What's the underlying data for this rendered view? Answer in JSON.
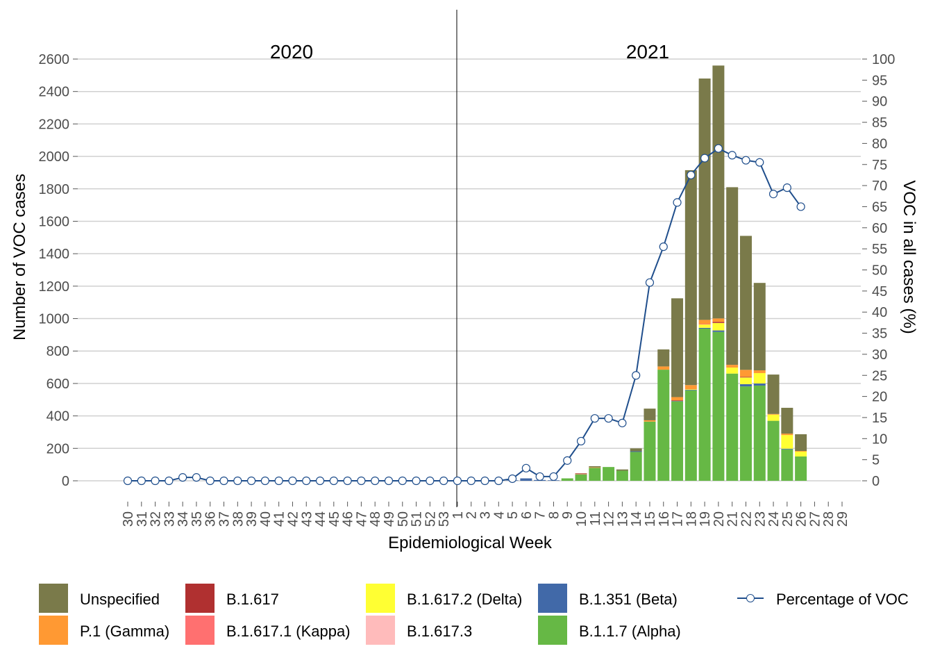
{
  "chart_data": {
    "type": "bar",
    "stacked": true,
    "title": "",
    "xlabel": "Epidemiological Week",
    "ylabel": "Number of VOC cases",
    "y2label": "VOC in all cases (%)",
    "ylim": [
      0,
      2600
    ],
    "y2lim": [
      0,
      100
    ],
    "yticks": [
      0,
      200,
      400,
      600,
      800,
      1000,
      1200,
      1400,
      1600,
      1800,
      2000,
      2200,
      2400,
      2600
    ],
    "y2ticks": [
      0,
      5,
      10,
      15,
      20,
      25,
      30,
      35,
      40,
      45,
      50,
      55,
      60,
      65,
      70,
      75,
      80,
      85,
      90,
      95,
      100
    ],
    "grid": true,
    "year_labels": [
      "2020",
      "2021"
    ],
    "categories": [
      "30",
      "31",
      "32",
      "33",
      "34",
      "35",
      "36",
      "37",
      "38",
      "39",
      "40",
      "41",
      "42",
      "43",
      "44",
      "45",
      "46",
      "47",
      "48",
      "49",
      "50",
      "51",
      "52",
      "53",
      "1",
      "2",
      "3",
      "4",
      "5",
      "6",
      "7",
      "8",
      "9",
      "10",
      "11",
      "12",
      "13",
      "14",
      "15",
      "16",
      "17",
      "18",
      "19",
      "20",
      "21",
      "22",
      "23",
      "24",
      "25",
      "26",
      "27",
      "28",
      "29"
    ],
    "series": [
      {
        "name": "B.1.1.7 (Alpha)",
        "color": "#66B845",
        "values": [
          0,
          0,
          0,
          0,
          0,
          0,
          0,
          0,
          0,
          0,
          0,
          0,
          0,
          0,
          0,
          0,
          0,
          0,
          0,
          0,
          0,
          0,
          0,
          0,
          0,
          0,
          0,
          0,
          0,
          0,
          0,
          0,
          15,
          40,
          80,
          85,
          62,
          178,
          365,
          685,
          490,
          558,
          938,
          918,
          661,
          582,
          587,
          370,
          194,
          150,
          0,
          0,
          0
        ]
      },
      {
        "name": "B.1.351 (Beta)",
        "color": "#4169A8",
        "values": [
          0,
          0,
          0,
          0,
          0,
          0,
          0,
          0,
          0,
          0,
          0,
          0,
          0,
          0,
          0,
          0,
          0,
          0,
          0,
          0,
          0,
          0,
          0,
          0,
          0,
          0,
          0,
          0,
          3,
          15,
          5,
          3,
          0,
          0,
          0,
          0,
          0,
          4,
          0,
          0,
          2,
          3,
          5,
          9,
          0,
          14,
          13,
          0,
          4,
          0,
          0,
          0,
          0
        ]
      },
      {
        "name": "B.1.617.3",
        "color": "#FFBBBB",
        "values": [
          0,
          0,
          0,
          0,
          0,
          0,
          0,
          0,
          0,
          0,
          0,
          0,
          0,
          0,
          0,
          0,
          0,
          0,
          0,
          0,
          0,
          0,
          0,
          0,
          0,
          0,
          0,
          0,
          0,
          0,
          0,
          0,
          0,
          0,
          0,
          0,
          0,
          0,
          0,
          0,
          0,
          0,
          0,
          0,
          0,
          0,
          0,
          0,
          0,
          0,
          0,
          0,
          0
        ]
      },
      {
        "name": "B.1.617.2 (Delta)",
        "color": "#FFFF33",
        "values": [
          0,
          0,
          0,
          0,
          0,
          0,
          0,
          0,
          0,
          0,
          0,
          0,
          0,
          0,
          0,
          0,
          0,
          0,
          0,
          0,
          0,
          0,
          0,
          0,
          0,
          0,
          0,
          0,
          0,
          0,
          0,
          0,
          0,
          0,
          0,
          0,
          0,
          0,
          0,
          0,
          0,
          3,
          21,
          46,
          37,
          41,
          64,
          38,
          84,
          30,
          0,
          0,
          0
        ]
      },
      {
        "name": "B.1.617.1 (Kappa)",
        "color": "#FF7070",
        "values": [
          0,
          0,
          0,
          0,
          0,
          0,
          0,
          0,
          0,
          0,
          0,
          0,
          0,
          0,
          0,
          0,
          0,
          0,
          0,
          0,
          0,
          0,
          0,
          0,
          0,
          0,
          0,
          0,
          0,
          0,
          0,
          0,
          0,
          5,
          0,
          0,
          0,
          0,
          0,
          0,
          0,
          0,
          4,
          0,
          0,
          0,
          0,
          0,
          0,
          0,
          0,
          0,
          0
        ]
      },
      {
        "name": "B.1.617",
        "color": "#B03030",
        "values": [
          0,
          0,
          0,
          0,
          0,
          0,
          0,
          0,
          0,
          0,
          0,
          0,
          0,
          0,
          0,
          0,
          0,
          0,
          0,
          0,
          0,
          0,
          0,
          0,
          0,
          0,
          0,
          0,
          0,
          0,
          0,
          0,
          0,
          0,
          0,
          0,
          0,
          0,
          0,
          0,
          4,
          0,
          0,
          7,
          0,
          4,
          0,
          0,
          0,
          0,
          0,
          0,
          0
        ]
      },
      {
        "name": "P.1 (Gamma)",
        "color": "#FF9933",
        "values": [
          0,
          0,
          0,
          0,
          0,
          0,
          0,
          0,
          0,
          0,
          0,
          0,
          0,
          0,
          0,
          0,
          0,
          0,
          0,
          0,
          0,
          0,
          0,
          0,
          0,
          0,
          0,
          0,
          0,
          0,
          0,
          0,
          0,
          0,
          3,
          0,
          0,
          0,
          8,
          20,
          20,
          26,
          24,
          21,
          17,
          43,
          17,
          4,
          9,
          4,
          0,
          0,
          0
        ]
      },
      {
        "name": "Unspecified",
        "color": "#7A7A4A",
        "values": [
          0,
          0,
          0,
          0,
          0,
          0,
          0,
          0,
          0,
          0,
          0,
          0,
          0,
          0,
          0,
          0,
          0,
          0,
          0,
          0,
          0,
          0,
          0,
          0,
          0,
          0,
          0,
          0,
          0,
          0,
          0,
          0,
          0,
          2,
          7,
          0,
          8,
          18,
          72,
          105,
          609,
          1325,
          1488,
          1559,
          1095,
          826,
          539,
          243,
          159,
          103,
          0,
          0,
          0
        ]
      }
    ],
    "line": {
      "name": "Percentage of VOC",
      "color": "#1F4E8C",
      "axis": "right",
      "values": [
        0,
        0,
        0,
        0,
        0.8,
        0.8,
        0,
        0,
        0,
        0,
        0,
        0,
        0,
        0,
        0,
        0,
        0,
        0,
        0,
        0,
        0,
        0,
        0,
        0,
        0,
        0,
        0,
        0,
        0.5,
        3,
        1,
        1,
        4.8,
        9.4,
        14.8,
        14.8,
        13.7,
        25,
        47,
        55.5,
        66,
        72.5,
        76.5,
        78.8,
        77.2,
        76,
        75.5,
        68,
        69.5,
        65,
        null,
        null,
        null
      ]
    },
    "legend_position": "bottom",
    "legend_order": [
      "Unspecified",
      "P.1 (Gamma)",
      "B.1.617",
      "B.1.617.1 (Kappa)",
      "B.1.617.2 (Delta)",
      "B.1.617.3",
      "B.1.351 (Beta)",
      "B.1.1.7 (Alpha)",
      "Percentage of VOC"
    ]
  }
}
